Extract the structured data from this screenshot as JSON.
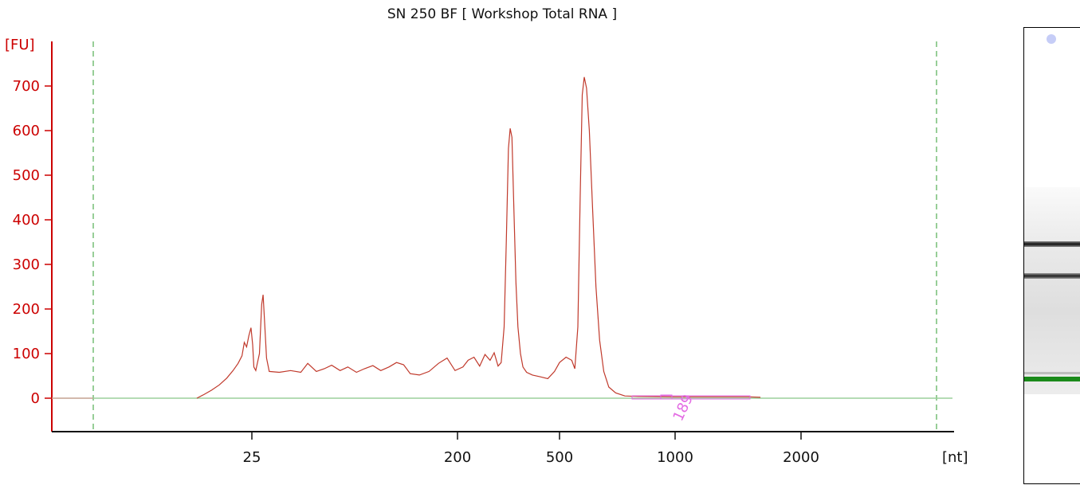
{
  "chart_data": {
    "type": "line",
    "title": "SN 250 BF  [ Workshop Total RNA ]",
    "ylabel": "[FU]",
    "xlabel": "[nt]",
    "y_ticks": [
      0,
      100,
      200,
      300,
      400,
      500,
      600,
      700
    ],
    "x_ticks": [
      "25",
      "200",
      "500",
      "1000",
      "2000"
    ],
    "ylim": [
      -75,
      790
    ],
    "annotation": "189",
    "markers_dashed": 2,
    "colors": {
      "trace": "#c0392b",
      "baseline": "#7fc97f",
      "axis": "#cc0000",
      "annotation": "#e36be3",
      "marker": "#2f9e2f"
    },
    "series": [
      {
        "x_unit": "electropherogram position (nt scale)",
        "points": [
          [
            15.0,
            0
          ],
          [
            16.0,
            8
          ],
          [
            17.2,
            18
          ],
          [
            18.5,
            30
          ],
          [
            19.8,
            45
          ],
          [
            21.0,
            62
          ],
          [
            22.0,
            78
          ],
          [
            22.8,
            95
          ],
          [
            23.3,
            125
          ],
          [
            23.8,
            115
          ],
          [
            24.3,
            140
          ],
          [
            24.8,
            158
          ],
          [
            25.2,
            120
          ],
          [
            25.5,
            70
          ],
          [
            26.0,
            62
          ],
          [
            27.0,
            100
          ],
          [
            27.6,
            210
          ],
          [
            28.0,
            232
          ],
          [
            28.5,
            160
          ],
          [
            29.0,
            90
          ],
          [
            29.8,
            60
          ],
          [
            33,
            58
          ],
          [
            37,
            62
          ],
          [
            41,
            58
          ],
          [
            44,
            78
          ],
          [
            48,
            60
          ],
          [
            52,
            66
          ],
          [
            56,
            74
          ],
          [
            61,
            62
          ],
          [
            66,
            70
          ],
          [
            72,
            58
          ],
          [
            78,
            66
          ],
          [
            85,
            73
          ],
          [
            92,
            62
          ],
          [
            100,
            70
          ],
          [
            108,
            80
          ],
          [
            116,
            75
          ],
          [
            124,
            55
          ],
          [
            136,
            52
          ],
          [
            150,
            60
          ],
          [
            165,
            78
          ],
          [
            180,
            90
          ],
          [
            195,
            62
          ],
          [
            210,
            70
          ],
          [
            220,
            85
          ],
          [
            232,
            92
          ],
          [
            244,
            72
          ],
          [
            256,
            98
          ],
          [
            268,
            85
          ],
          [
            278,
            102
          ],
          [
            288,
            72
          ],
          [
            296,
            80
          ],
          [
            304,
            160
          ],
          [
            310,
            350
          ],
          [
            316,
            560
          ],
          [
            321,
            605
          ],
          [
            326,
            585
          ],
          [
            332,
            420
          ],
          [
            338,
            260
          ],
          [
            344,
            160
          ],
          [
            352,
            100
          ],
          [
            360,
            70
          ],
          [
            372,
            58
          ],
          [
            392,
            52
          ],
          [
            420,
            48
          ],
          [
            450,
            44
          ],
          [
            478,
            60
          ],
          [
            500,
            80
          ],
          [
            520,
            92
          ],
          [
            538,
            85
          ],
          [
            548,
            66
          ],
          [
            558,
            160
          ],
          [
            566,
            450
          ],
          [
            573,
            680
          ],
          [
            580,
            720
          ],
          [
            588,
            695
          ],
          [
            598,
            600
          ],
          [
            610,
            420
          ],
          [
            622,
            250
          ],
          [
            636,
            130
          ],
          [
            652,
            60
          ],
          [
            672,
            25
          ],
          [
            700,
            12
          ],
          [
            740,
            5
          ],
          [
            800,
            4
          ],
          [
            1000,
            3
          ],
          [
            1500,
            3
          ],
          [
            1600,
            2
          ]
        ]
      }
    ]
  }
}
